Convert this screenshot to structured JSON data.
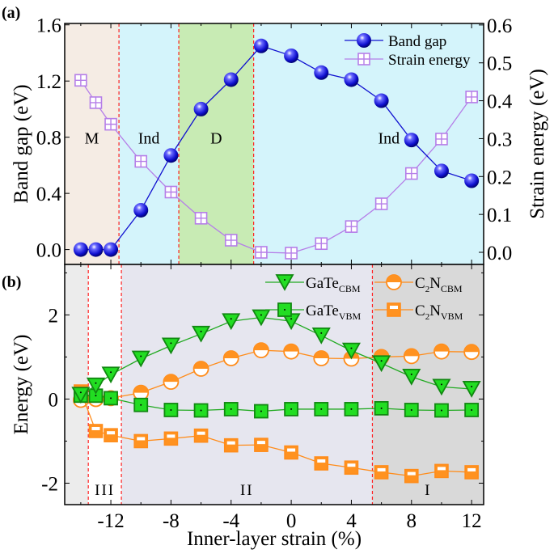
{
  "chart_data": [
    {
      "panel_label": "(a)",
      "type": "line",
      "x": [
        -14,
        -13,
        -12,
        -10,
        -8,
        -6,
        -4,
        -2,
        0,
        2,
        4,
        6,
        8,
        10,
        12
      ],
      "xlim": [
        -15.07,
        12.8
      ],
      "ylabel": "Band gap (eV)",
      "ylim": [
        -0.106,
        1.61
      ],
      "yticks": [
        "0.0",
        "0.4",
        "0.8",
        "1.2",
        "1.6"
      ],
      "y2label": "Strain energy (eV)",
      "y2lim": [
        -0.032,
        0.604
      ],
      "y2ticks": [
        "0.0",
        "0.1",
        "0.2",
        "0.3",
        "0.4",
        "0.5",
        "0.6"
      ],
      "legend_position": "top-right",
      "series": [
        {
          "name": "Band gap",
          "axis": "left",
          "color": "#1010d0",
          "marker": "sphere",
          "values": [
            0,
            0,
            0,
            0.28,
            0.67,
            1.0,
            1.21,
            1.45,
            1.38,
            1.26,
            1.21,
            1.06,
            0.78,
            0.56,
            0.49
          ]
        },
        {
          "name": "Strain energy",
          "axis": "right",
          "color": "#b57ee8",
          "marker": "boxed-plus",
          "values": [
            0.454,
            0.395,
            0.338,
            0.24,
            0.159,
            0.09,
            0.032,
            0,
            -0.002,
            0.023,
            0.068,
            0.128,
            0.208,
            0.299,
            0.41
          ]
        }
      ],
      "regions": [
        {
          "label": "M",
          "from": -15.07,
          "to": -11.46,
          "color": "#f5ece4"
        },
        {
          "label": "Ind",
          "from": -11.46,
          "to": -7.48,
          "color": "#d4f4fb"
        },
        {
          "label": "D",
          "from": -7.48,
          "to": -2.5,
          "color": "#c8ebb4"
        },
        {
          "label": "Ind",
          "from": -2.5,
          "to": 12.8,
          "color": "#d4f4fb"
        }
      ],
      "boundary_color": "#ff2020"
    },
    {
      "panel_label": "(b)",
      "type": "line",
      "x": [
        -14,
        -13,
        -12,
        -10,
        -8,
        -6,
        -4,
        -2,
        0,
        2,
        4,
        6,
        8,
        10,
        12
      ],
      "xlim": [
        -15.07,
        12.8
      ],
      "xticks": [
        "-12",
        "-8",
        "-4",
        "0",
        "4",
        "8",
        "12"
      ],
      "xlabel": "Inner-layer strain (%)",
      "ylabel": "Energy (eV)",
      "ylim": [
        -2.51,
        3.2
      ],
      "yticks": [
        "-2",
        "0",
        "2"
      ],
      "legend_position": "top",
      "series": [
        {
          "name": "GaTe",
          "sub": "CBM",
          "color": "#22aa22",
          "fill": "#22dd22",
          "marker": "triangle-down",
          "values": [
            0.1,
            0.32,
            0.58,
            0.96,
            1.27,
            1.55,
            1.85,
            1.94,
            1.85,
            1.51,
            1.15,
            0.85,
            0.53,
            0.29,
            0.24
          ]
        },
        {
          "name": "C2N",
          "name_main": "C",
          "name_sub2": "2",
          "name_rest": "N",
          "sub": "CBM",
          "color": "#ff8c1a",
          "fill": "#ff9220",
          "marker": "half-circle",
          "values": [
            -0.02,
            0,
            0.02,
            0.15,
            0.41,
            0.72,
            0.97,
            1.16,
            1.13,
            0.97,
            0.96,
            1.0,
            1.02,
            1.13,
            1.12
          ]
        },
        {
          "name": "GaTe",
          "sub": "VBM",
          "color": "#22aa22",
          "fill": "#22dd22",
          "marker": "square-dot",
          "values": [
            0.08,
            0.08,
            0.02,
            -0.14,
            -0.26,
            -0.27,
            -0.24,
            -0.29,
            -0.24,
            -0.24,
            -0.24,
            -0.22,
            -0.26,
            -0.27,
            -0.26
          ]
        },
        {
          "name": "C2N",
          "name_main": "C",
          "name_sub2": "2",
          "name_rest": "N",
          "sub": "VBM",
          "color": "#ff8c1a",
          "fill": "#ff9220",
          "marker": "half-square",
          "values": [
            0.18,
            -0.76,
            -0.86,
            -1.0,
            -0.94,
            -0.87,
            -1.1,
            -1.09,
            -1.27,
            -1.53,
            -1.63,
            -1.74,
            -1.83,
            -1.71,
            -1.74
          ]
        }
      ],
      "regions": [
        {
          "label": "",
          "from": -15.07,
          "to": -13.5,
          "color": "#ececec"
        },
        {
          "label": "III",
          "from": -13.5,
          "to": -11.3,
          "color": "#ffffff"
        },
        {
          "label": "II",
          "from": -11.3,
          "to": 5.4,
          "color": "#e6e6ef"
        },
        {
          "label": "I",
          "from": 5.4,
          "to": 12.8,
          "color": "#d9d9d9"
        }
      ],
      "boundary_color": "#ff2020"
    }
  ]
}
